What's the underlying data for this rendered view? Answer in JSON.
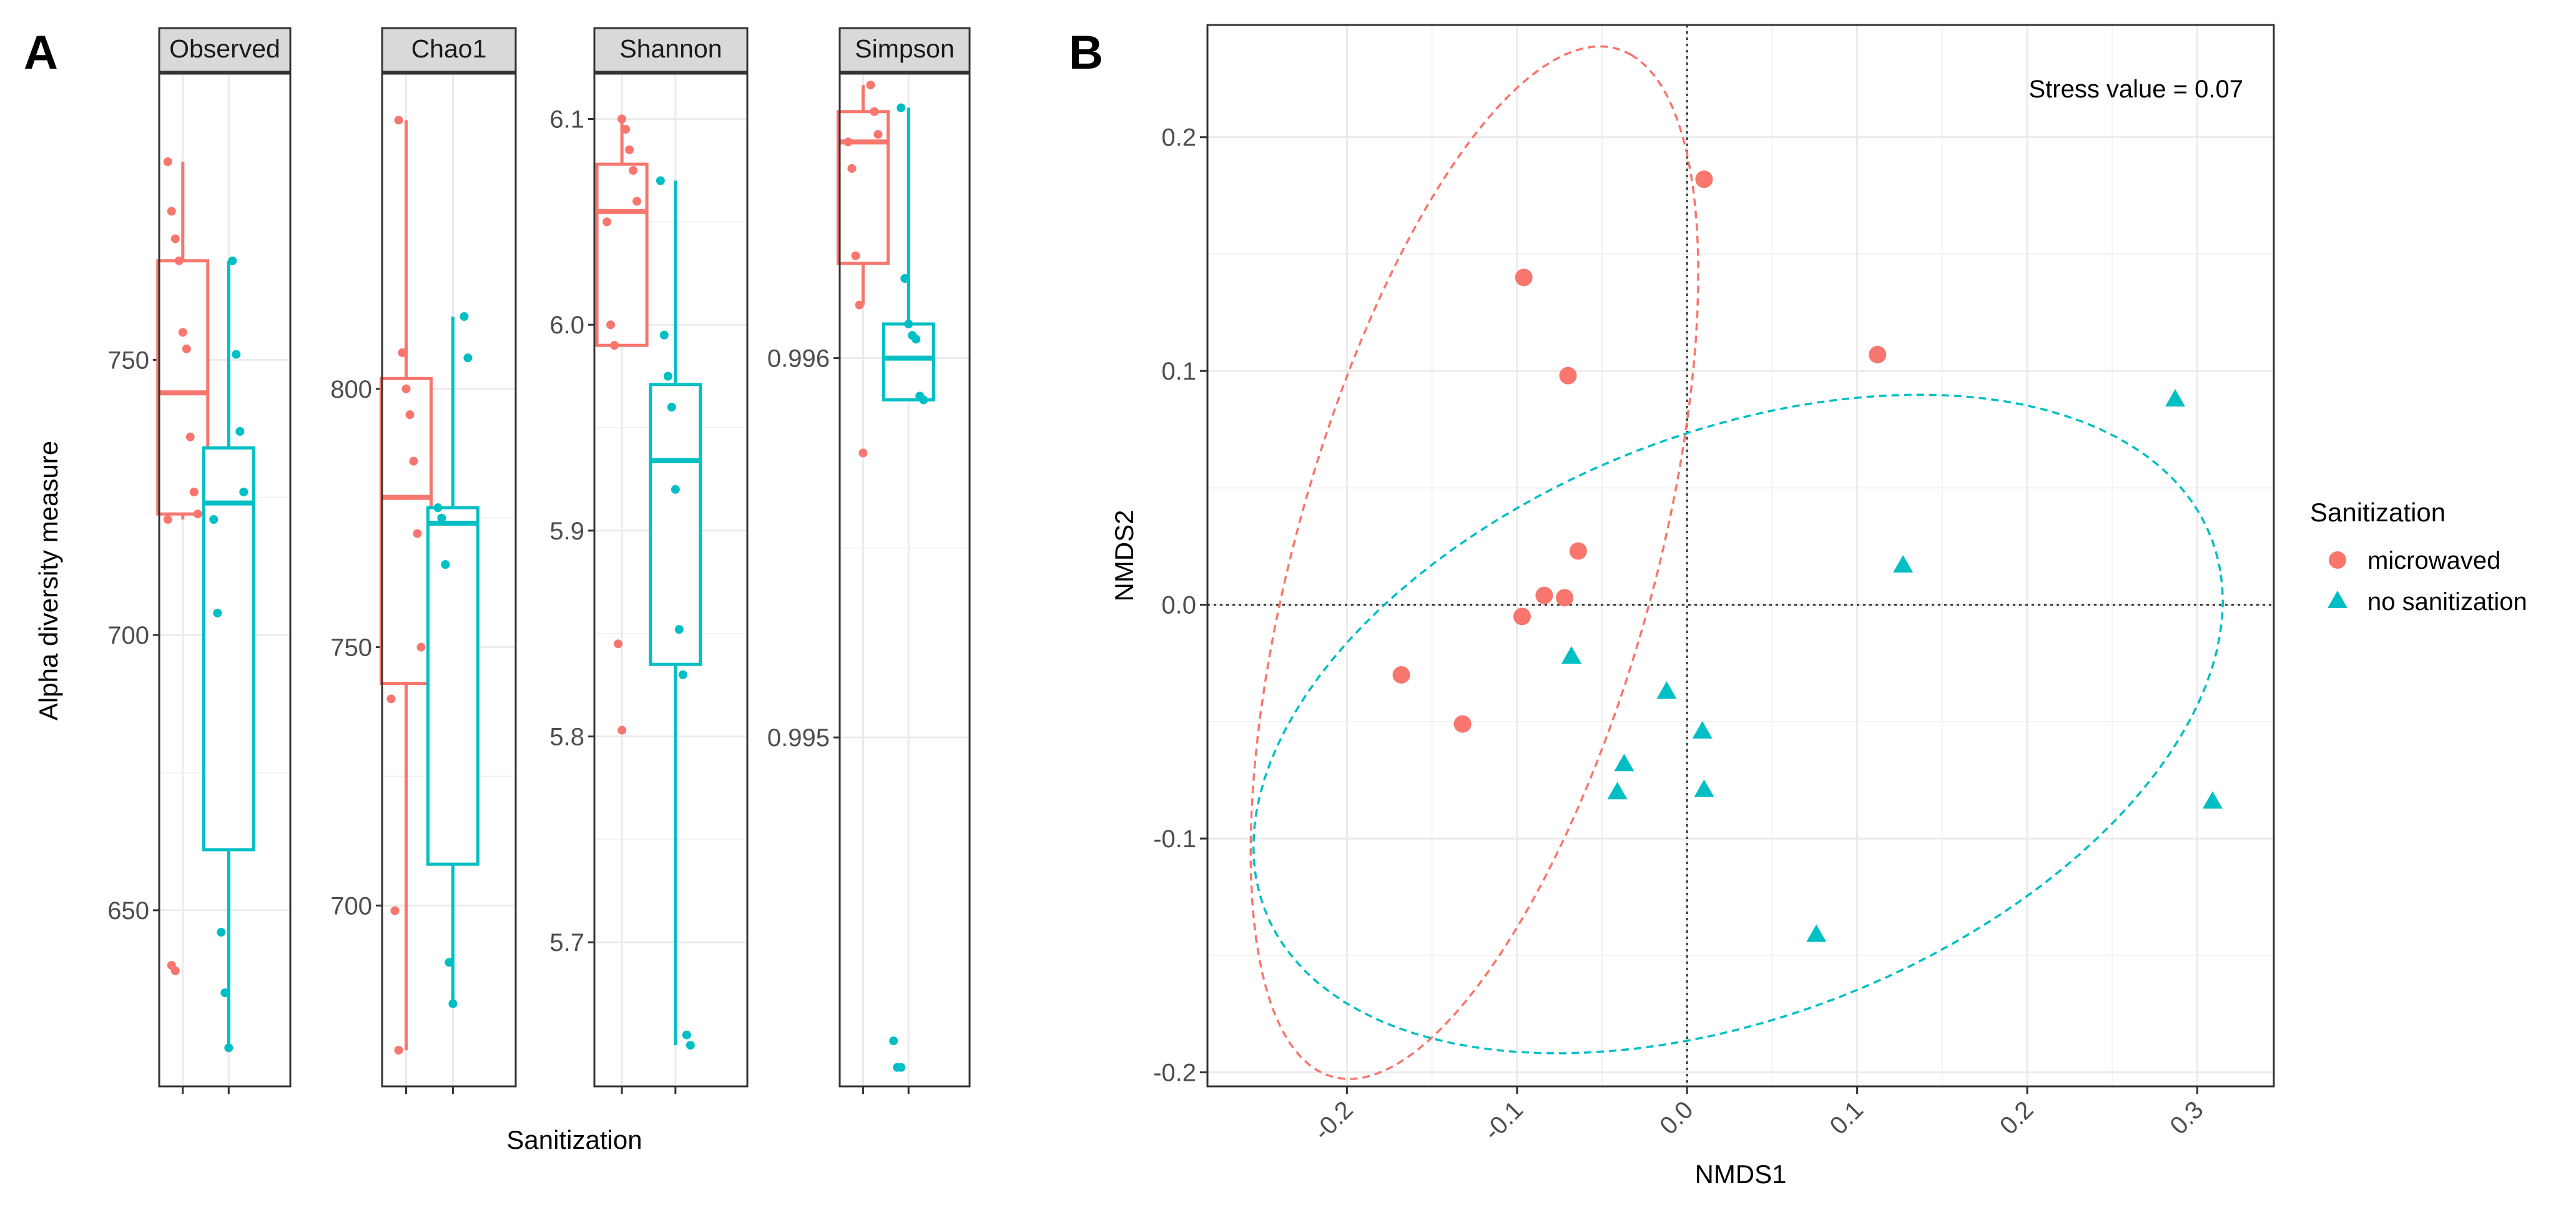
{
  "panel_labels": {
    "a": "A",
    "b": "B"
  },
  "colors": {
    "microwaved": "#F8766D",
    "no_sanitization": "#00BFC4",
    "grid": "#EBEBEB",
    "frame": "#333333",
    "strip_bg": "#D9D9D9"
  },
  "chart_data": [
    {
      "type": "box",
      "panel": "A",
      "title": "",
      "xlabel": "Sanitization",
      "ylabel": "Alpha diversity measure",
      "groups": [
        "microwaved",
        "no sanitization"
      ],
      "facets": [
        {
          "name": "Observed",
          "ylim": [
            618,
            802
          ],
          "ticks": [
            {
              "value": 650,
              "label": "650"
            },
            {
              "value": 700,
              "label": "700"
            },
            {
              "value": 750,
              "label": "750"
            }
          ],
          "boxes": [
            {
              "group": "microwaved",
              "min": 721,
              "q1": 722,
              "median": 744,
              "q3": 768,
              "max": 786
            },
            {
              "group": "no sanitization",
              "min": 625,
              "q1": 661,
              "median": 724,
              "q3": 734,
              "max": 768
            }
          ],
          "points": [
            {
              "group": "microwaved",
              "values": [
                786,
                777,
                772,
                768,
                755,
                752,
                736,
                726,
                722,
                721,
                640,
                639
              ]
            },
            {
              "group": "no sanitization",
              "values": [
                768,
                751,
                737,
                726,
                721,
                704,
                646,
                635,
                625
              ]
            }
          ]
        },
        {
          "name": "Chao1",
          "ylim": [
            665,
            861
          ],
          "ticks": [
            {
              "value": 700,
              "label": "700"
            },
            {
              "value": 750,
              "label": "750"
            },
            {
              "value": 800,
              "label": "800"
            }
          ],
          "boxes": [
            {
              "group": "microwaved",
              "min": 672,
              "q1": 743,
              "median": 779,
              "q3": 802,
              "max": 852
            },
            {
              "group": "no sanitization",
              "min": 681,
              "q1": 708,
              "median": 774,
              "q3": 777,
              "max": 814
            }
          ],
          "points": [
            {
              "group": "microwaved",
              "values": [
                852,
                807,
                800,
                795,
                786,
                772,
                750,
                740,
                699,
                672
              ]
            },
            {
              "group": "no sanitization",
              "values": [
                814,
                806,
                777,
                775,
                766,
                689,
                681
              ]
            }
          ]
        },
        {
          "name": "Shannon",
          "ylim": [
            5.63,
            6.122
          ],
          "ticks": [
            {
              "value": 5.7,
              "label": "5.7"
            },
            {
              "value": 5.8,
              "label": "5.8"
            },
            {
              "value": 5.9,
              "label": "5.9"
            },
            {
              "value": 6.0,
              "label": "6.0"
            },
            {
              "value": 6.1,
              "label": "6.1"
            }
          ],
          "boxes": [
            {
              "group": "microwaved",
              "min": 5.99,
              "q1": 5.99,
              "median": 6.055,
              "q3": 6.078,
              "max": 6.1
            },
            {
              "group": "no sanitization",
              "min": 5.65,
              "q1": 5.835,
              "median": 5.934,
              "q3": 5.971,
              "max": 6.07
            }
          ],
          "points": [
            {
              "group": "microwaved",
              "values": [
                6.1,
                6.095,
                6.085,
                6.075,
                6.06,
                6.05,
                6.0,
                5.99,
                5.845,
                5.803
              ]
            },
            {
              "group": "no sanitization",
              "values": [
                6.07,
                5.995,
                5.975,
                5.96,
                5.92,
                5.852,
                5.83,
                5.655,
                5.65
              ]
            }
          ]
        },
        {
          "name": "Simpson",
          "ylim": [
            0.99408,
            0.99675
          ],
          "ticks": [
            {
              "value": 0.995,
              "label": "0.995"
            },
            {
              "value": 0.996,
              "label": "0.996"
            }
          ],
          "boxes": [
            {
              "group": "microwaved",
              "min": 0.99614,
              "q1": 0.99625,
              "median": 0.99657,
              "q3": 0.99665,
              "max": 0.99672
            },
            {
              "group": "no sanitization",
              "min": 0.99589,
              "q1": 0.99589,
              "median": 0.996,
              "q3": 0.99609,
              "max": 0.99666
            }
          ],
          "points": [
            {
              "group": "microwaved",
              "values": [
                0.99672,
                0.99665,
                0.99659,
                0.99657,
                0.9965,
                0.99627,
                0.99614,
                0.99575
              ]
            },
            {
              "group": "no sanitization",
              "values": [
                0.99666,
                0.99621,
                0.99609,
                0.99606,
                0.99605,
                0.9959,
                0.99589,
                0.9942,
                0.99413,
                0.99413
              ]
            }
          ]
        }
      ]
    },
    {
      "type": "scatter",
      "panel": "B",
      "title": "",
      "xlabel": "NMDS1",
      "ylabel": "NMDS2",
      "xlim": [
        -0.282,
        0.345
      ],
      "ylim": [
        -0.206,
        0.248
      ],
      "xticks": [
        {
          "value": -0.2,
          "label": "-0.2"
        },
        {
          "value": -0.1,
          "label": "-0.1"
        },
        {
          "value": 0.0,
          "label": "0.0"
        },
        {
          "value": 0.1,
          "label": "0.1"
        },
        {
          "value": 0.2,
          "label": "0.2"
        },
        {
          "value": 0.3,
          "label": "0.3"
        }
      ],
      "yticks": [
        {
          "value": -0.2,
          "label": "-0.2"
        },
        {
          "value": -0.1,
          "label": "-0.1"
        },
        {
          "value": 0.0,
          "label": "0.0"
        },
        {
          "value": 0.1,
          "label": "0.1"
        },
        {
          "value": 0.2,
          "label": "0.2"
        }
      ],
      "annotation": "Stress value = 0.07",
      "legend": {
        "title": "Sanitization",
        "position": "right"
      },
      "series": [
        {
          "name": "microwaved",
          "marker": "circle",
          "points": [
            {
              "x": 0.01,
              "y": 0.182
            },
            {
              "x": -0.096,
              "y": 0.14
            },
            {
              "x": 0.112,
              "y": 0.107
            },
            {
              "x": -0.07,
              "y": 0.098
            },
            {
              "x": -0.064,
              "y": 0.023
            },
            {
              "x": -0.084,
              "y": 0.004
            },
            {
              "x": -0.072,
              "y": 0.003
            },
            {
              "x": -0.097,
              "y": -0.005
            },
            {
              "x": -0.168,
              "y": -0.03
            },
            {
              "x": -0.132,
              "y": -0.051
            }
          ],
          "ellipse": {
            "cx": -0.125,
            "cy": 0.018,
            "rx": 0.236,
            "ry": 0.102,
            "angle_deg": 67
          }
        },
        {
          "name": "no sanitization",
          "marker": "triangle",
          "points": [
            {
              "x": 0.287,
              "y": 0.088
            },
            {
              "x": 0.127,
              "y": 0.017
            },
            {
              "x": -0.068,
              "y": -0.022
            },
            {
              "x": -0.012,
              "y": -0.037
            },
            {
              "x": 0.009,
              "y": -0.054
            },
            {
              "x": -0.037,
              "y": -0.068
            },
            {
              "x": -0.041,
              "y": -0.08
            },
            {
              "x": 0.01,
              "y": -0.079
            },
            {
              "x": 0.309,
              "y": -0.084
            },
            {
              "x": 0.076,
              "y": -0.141
            }
          ],
          "ellipse": {
            "cx": 0.03,
            "cy": -0.051,
            "rx": 0.291,
            "ry": 0.128,
            "angle_deg": 13
          }
        }
      ]
    }
  ]
}
